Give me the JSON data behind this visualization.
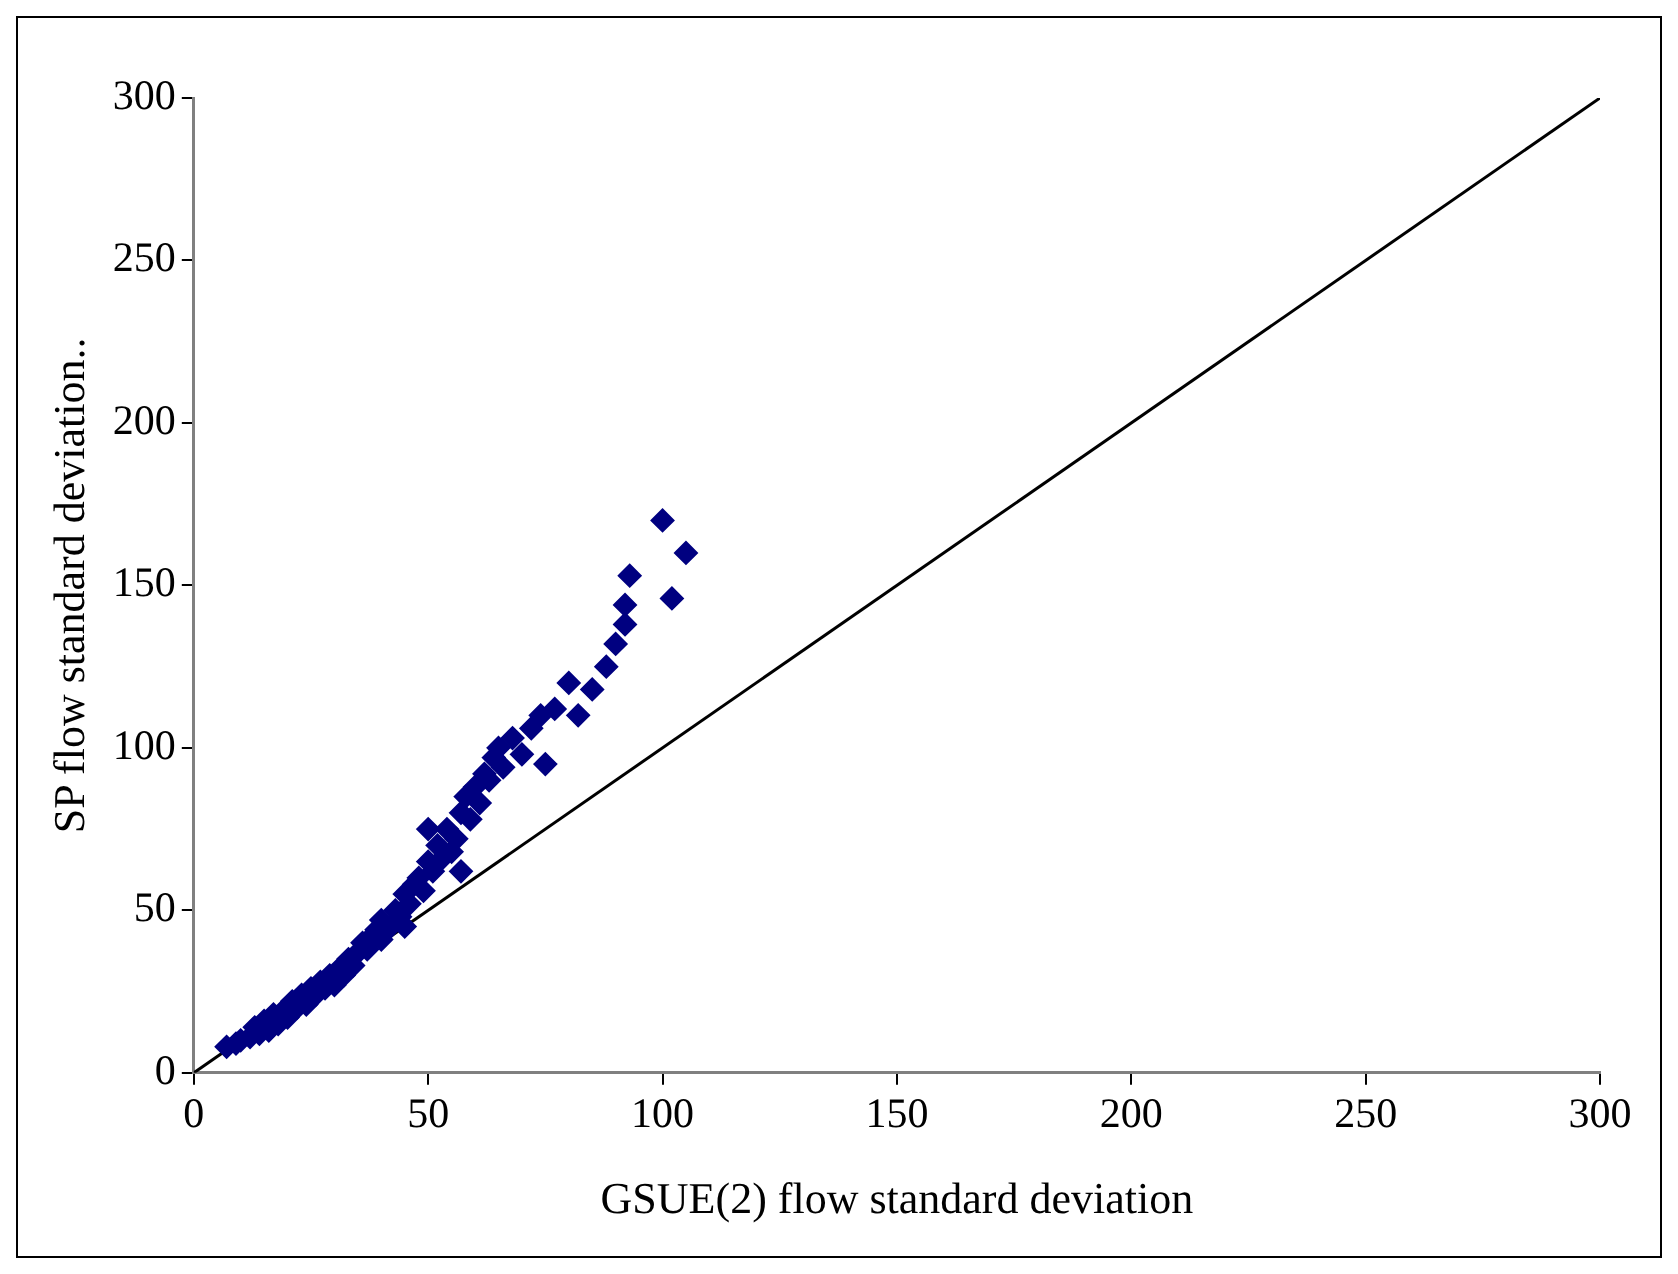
{
  "chart_data": {
    "type": "scatter",
    "xlabel": "GSUE(2) flow standard deviation",
    "ylabel": "SP flow standard deviation..",
    "xlim": [
      0,
      300
    ],
    "ylim": [
      0,
      300
    ],
    "xticks": [
      0,
      50,
      100,
      150,
      200,
      250,
      300
    ],
    "yticks": [
      0,
      50,
      100,
      150,
      200,
      250,
      300
    ],
    "grid": false,
    "legend": false,
    "series": [
      {
        "marker": "diamond",
        "color": "#000080",
        "x": [
          7,
          9,
          10,
          12,
          13,
          14,
          15,
          16,
          17,
          18,
          19,
          20,
          21,
          22,
          23,
          24,
          25,
          26,
          27,
          28,
          29,
          30,
          31,
          32,
          33,
          34,
          35,
          36,
          37,
          38,
          39,
          40,
          42,
          43,
          44,
          45,
          46,
          47,
          48,
          49,
          50,
          51,
          52,
          53,
          54,
          55,
          56,
          57,
          58,
          59,
          60,
          61,
          62,
          63,
          64,
          65,
          66,
          68,
          70,
          72,
          74,
          75,
          77,
          80,
          82,
          85,
          88,
          90,
          92,
          93,
          92,
          100,
          105,
          102,
          57,
          50,
          45,
          40
        ],
        "values": [
          8,
          9,
          10,
          11,
          14,
          12,
          16,
          13,
          18,
          15,
          19,
          17,
          22,
          20,
          24,
          21,
          26,
          24,
          28,
          26,
          30,
          27,
          32,
          30,
          35,
          33,
          37,
          40,
          38,
          42,
          44,
          41,
          45,
          50,
          48,
          55,
          52,
          58,
          60,
          56,
          65,
          62,
          70,
          66,
          75,
          68,
          72,
          80,
          85,
          78,
          88,
          83,
          92,
          90,
          97,
          100,
          94,
          103,
          98,
          106,
          110,
          95,
          112,
          120,
          110,
          118,
          125,
          132,
          138,
          153,
          144,
          170,
          160,
          146,
          62,
          75,
          45,
          47
        ]
      },
      {
        "type": "line",
        "color": "#000000",
        "x": [
          0,
          300
        ],
        "values": [
          0,
          300
        ]
      }
    ]
  }
}
